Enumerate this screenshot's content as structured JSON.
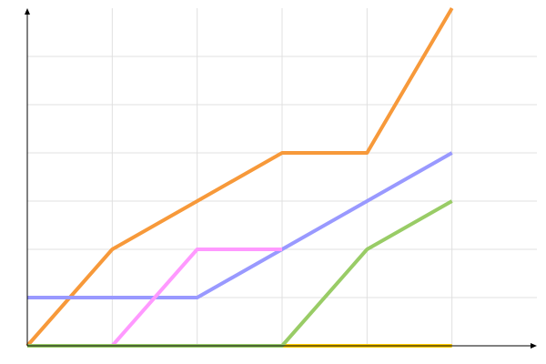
{
  "chart_data": {
    "type": "line",
    "x": [
      0,
      1,
      2,
      3,
      4,
      5
    ],
    "series": [
      {
        "color": "#f7993a",
        "values": [
          0,
          2,
          3,
          4,
          4,
          7
        ]
      },
      {
        "color": "#9999ff",
        "values": [
          1,
          1,
          1,
          2,
          3,
          4
        ]
      },
      {
        "color": "#ff99ff",
        "values": [
          null,
          0,
          2,
          2,
          null,
          null
        ]
      },
      {
        "color": "#ffcc00",
        "values": [
          null,
          null,
          null,
          0,
          0,
          0
        ]
      },
      {
        "color": "#99cc66",
        "values": [
          0,
          0,
          0,
          0,
          2,
          3
        ]
      }
    ],
    "xlim": [
      0,
      6
    ],
    "ylim": [
      0,
      7
    ],
    "xticks": [
      1,
      2,
      3,
      4,
      5
    ],
    "yticks": [
      1,
      2,
      3,
      4,
      5,
      6
    ],
    "grid": true
  }
}
